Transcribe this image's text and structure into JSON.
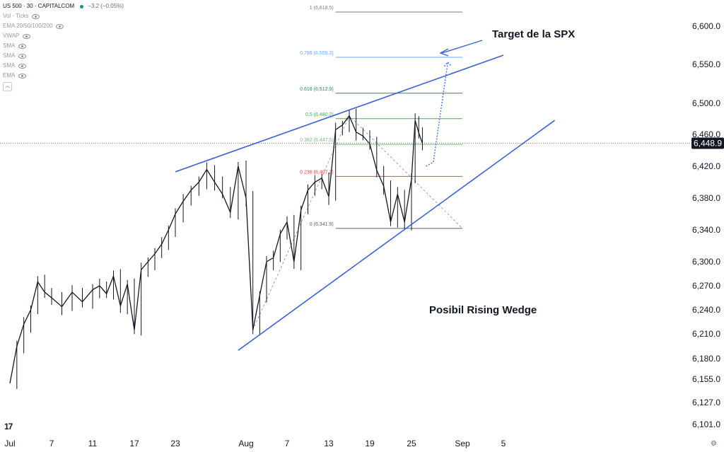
{
  "header": {
    "symbol": "US 500 · 30 · CAPITALCOM",
    "change": "−3.2 (−0.05%)",
    "indicators": [
      "Vol · Ticks",
      "EMA 20/50/100/200",
      "VWAP",
      "SMA",
      "SMA",
      "SMA",
      "EMA"
    ],
    "collapse_icon": "chevron-up-icon"
  },
  "logo": "17",
  "settings_icon": "gear-icon",
  "colors": {
    "candle": "#131722",
    "trendline": "#3a63d8",
    "target_path": "#4d7cf0",
    "fib_0": "#5d606b",
    "fib_0236": "#e0494c",
    "fib_0382": "#7bbf7b",
    "fib_05": "#4caf50",
    "fib_0618": "#2e8b57",
    "fib_0786": "#6fa8e8",
    "fib_1": "#787b86",
    "price_tag_bg": "#131722"
  },
  "chart_data": {
    "type": "line",
    "description_series": "US 500 30-minute price action",
    "y_axis": {
      "ticks": [
        "6,600.0",
        "6,550.0",
        "6,500.0",
        "6,460.0",
        "6,420.0",
        "6,380.0",
        "6,340.0",
        "6,300.0",
        "6,270.0",
        "6,240.0",
        "6,210.0",
        "6,180.0",
        "6,155.0",
        "6,127.0",
        "6,101.0"
      ],
      "tick_values": [
        6600,
        6550,
        6500,
        6460,
        6420,
        6380,
        6340,
        6300,
        6270,
        6240,
        6210,
        6180,
        6155,
        6127,
        6101
      ],
      "scale": "non-linear"
    },
    "x_axis": {
      "ticks": [
        "Jul",
        "7",
        "11",
        "17",
        "23",
        "Aug",
        "7",
        "13",
        "19",
        "25",
        "Sep",
        "5"
      ],
      "tick_dates": [
        "2025-07-01",
        "2025-07-07",
        "2025-07-11",
        "2025-07-17",
        "2025-07-23",
        "2025-08-01",
        "2025-08-07",
        "2025-08-13",
        "2025-08-19",
        "2025-08-25",
        "2025-09-01",
        "2025-09-05"
      ]
    },
    "current_price": "6,448.9",
    "current_price_value": 6448.9,
    "price_path": [
      [
        "2025-07-01",
        6150
      ],
      [
        "2025-07-02",
        6195
      ],
      [
        "2025-07-03",
        6222
      ],
      [
        "2025-07-04",
        6240
      ],
      [
        "2025-07-05",
        6275
      ],
      [
        "2025-07-06",
        6262
      ],
      [
        "2025-07-07",
        6255
      ],
      [
        "2025-07-08",
        6244
      ],
      [
        "2025-07-09",
        6262
      ],
      [
        "2025-07-10",
        6250
      ],
      [
        "2025-07-11",
        6265
      ],
      [
        "2025-07-12",
        6270
      ],
      [
        "2025-07-13",
        6260
      ],
      [
        "2025-07-14",
        6282
      ],
      [
        "2025-07-15",
        6245
      ],
      [
        "2025-07-16",
        6272
      ],
      [
        "2025-07-17",
        6215
      ],
      [
        "2025-07-18",
        6290
      ],
      [
        "2025-07-19",
        6300
      ],
      [
        "2025-07-20",
        6310
      ],
      [
        "2025-07-21",
        6322
      ],
      [
        "2025-07-22",
        6340
      ],
      [
        "2025-07-23",
        6360
      ],
      [
        "2025-07-24",
        6376
      ],
      [
        "2025-07-25",
        6390
      ],
      [
        "2025-07-26",
        6400
      ],
      [
        "2025-07-27",
        6416
      ],
      [
        "2025-07-28",
        6400
      ],
      [
        "2025-07-29",
        6385
      ],
      [
        "2025-07-30",
        6362
      ],
      [
        "2025-07-31",
        6420
      ],
      [
        "2025-08-01",
        6380
      ],
      [
        "2025-08-02",
        6215
      ],
      [
        "2025-08-03",
        6258
      ],
      [
        "2025-08-04",
        6300
      ],
      [
        "2025-08-05",
        6305
      ],
      [
        "2025-08-06",
        6335
      ],
      [
        "2025-08-07",
        6350
      ],
      [
        "2025-08-08",
        6300
      ],
      [
        "2025-08-09",
        6365
      ],
      [
        "2025-08-10",
        6390
      ],
      [
        "2025-08-11",
        6400
      ],
      [
        "2025-08-12",
        6405
      ],
      [
        "2025-08-13",
        6382
      ],
      [
        "2025-08-14",
        6466
      ],
      [
        "2025-08-15",
        6472
      ],
      [
        "2025-08-16",
        6484
      ],
      [
        "2025-08-17",
        6463
      ],
      [
        "2025-08-18",
        6458
      ],
      [
        "2025-08-19",
        6448
      ],
      [
        "2025-08-20",
        6415
      ],
      [
        "2025-08-21",
        6395
      ],
      [
        "2025-08-22",
        6350
      ],
      [
        "2025-08-23",
        6385
      ],
      [
        "2025-08-24",
        6350
      ],
      [
        "2025-08-25",
        6404
      ],
      [
        "2025-08-25T12:00",
        6478
      ],
      [
        "2025-08-26",
        6462
      ],
      [
        "2025-08-26T12:00",
        6448.9
      ]
    ],
    "fibonacci": [
      {
        "label": "1 (6,618.5)",
        "value": 6618.5,
        "color": "#787b86"
      },
      {
        "label": "0.786 (6,559.3)",
        "value": 6559.3,
        "color": "#6fa8e8"
      },
      {
        "label": "0.618 (6,512.9)",
        "value": 6512.9,
        "color": "#2e8b57"
      },
      {
        "label": "0.5 (6,480.2)",
        "value": 6480.2,
        "color": "#4caf50"
      },
      {
        "label": "0.382 (6,447.5)",
        "value": 6447.5,
        "color": "#7bbf7b"
      },
      {
        "label": "0.236 (6,407.2)",
        "value": 6407.2,
        "color": "#e0494c"
      },
      {
        "label": "0 (6,341.9)",
        "value": 6341.9,
        "color": "#5d606b"
      }
    ],
    "trendlines": [
      {
        "name": "upper",
        "from": [
          "2025-07-23",
          6413
        ],
        "to": [
          "2025-09-05",
          6562
        ]
      },
      {
        "name": "lower",
        "from": [
          "2025-07-31",
          6190
        ],
        "to": [
          "2025-09-10",
          6478
        ]
      }
    ],
    "target_path": [
      [
        "2025-08-27",
        6420
      ],
      [
        "2025-08-28",
        6425
      ],
      [
        "2025-08-30",
        6553
      ]
    ],
    "annotations": [
      "Target de la SPX",
      "Posibil Rising Wedge"
    ]
  }
}
